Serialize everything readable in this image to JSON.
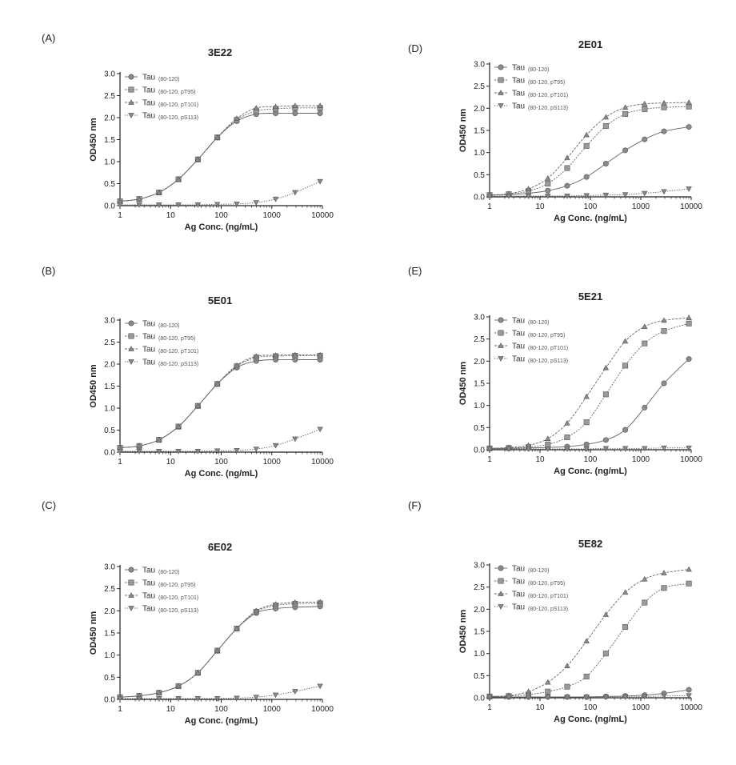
{
  "panels": [
    {
      "letter": "(A)",
      "chart_data": {
        "type": "line",
        "title": "3E22",
        "xlabel": "Ag Conc. (ng/mL)",
        "ylabel": "OD450 nm",
        "xscale": "log",
        "xlim": [
          1,
          10000
        ],
        "ylim": [
          0,
          3.0
        ],
        "xticks": [
          "1",
          "10",
          "100",
          "1000",
          "10000"
        ],
        "yticks": [
          "0.0",
          "0.5",
          "1.0",
          "1.5",
          "2.0",
          "2.5",
          "3.0"
        ],
        "grid": false,
        "legend": "top-left",
        "x": [
          1,
          2.4,
          5.9,
          14.3,
          34.6,
          83.8,
          203,
          492,
          1191,
          2886,
          9000
        ],
        "series": [
          {
            "name": "Tau",
            "sub": "(80-120)",
            "marker": "circle",
            "values": [
              0.1,
              0.15,
              0.3,
              0.6,
              1.05,
              1.55,
              1.92,
              2.08,
              2.1,
              2.1,
              2.1
            ]
          },
          {
            "name": "Tau",
            "sub": "(80-120, pT95)",
            "marker": "square",
            "values": [
              0.1,
              0.15,
              0.3,
              0.6,
              1.05,
              1.55,
              1.95,
              2.15,
              2.2,
              2.22,
              2.22
            ]
          },
          {
            "name": "Tau",
            "sub": "(80-120, pT101)",
            "marker": "triangle",
            "values": [
              0.1,
              0.15,
              0.3,
              0.6,
              1.05,
              1.55,
              1.98,
              2.22,
              2.25,
              2.27,
              2.27
            ]
          },
          {
            "name": "Tau",
            "sub": "(80-120, pS113)",
            "marker": "triangle-down",
            "values": [
              0.02,
              0.02,
              0.02,
              0.02,
              0.02,
              0.03,
              0.04,
              0.07,
              0.15,
              0.3,
              0.55
            ]
          }
        ]
      }
    },
    {
      "letter": "(B)",
      "chart_data": {
        "type": "line",
        "title": "5E01",
        "xlabel": "Ag Conc. (ng/mL)",
        "ylabel": "OD450 nm",
        "xscale": "log",
        "xlim": [
          1,
          10000
        ],
        "ylim": [
          0,
          3.0
        ],
        "xticks": [
          "1",
          "10",
          "100",
          "1000",
          "10000"
        ],
        "yticks": [
          "0.0",
          "0.5",
          "1.0",
          "1.5",
          "2.0",
          "2.5",
          "3.0"
        ],
        "grid": false,
        "legend": "top-left",
        "x": [
          1,
          2.4,
          5.9,
          14.3,
          34.6,
          83.8,
          203,
          492,
          1191,
          2886,
          9000
        ],
        "series": [
          {
            "name": "Tau",
            "sub": "(80-120)",
            "marker": "circle",
            "values": [
              0.1,
              0.14,
              0.28,
              0.58,
              1.05,
              1.55,
              1.92,
              2.07,
              2.1,
              2.1,
              2.1
            ]
          },
          {
            "name": "Tau",
            "sub": "(80-120, pT95)",
            "marker": "square",
            "values": [
              0.1,
              0.14,
              0.28,
              0.58,
              1.05,
              1.55,
              1.95,
              2.15,
              2.18,
              2.19,
              2.19
            ]
          },
          {
            "name": "Tau",
            "sub": "(80-120, pT101)",
            "marker": "triangle",
            "values": [
              0.1,
              0.14,
              0.28,
              0.58,
              1.05,
              1.55,
              1.97,
              2.18,
              2.2,
              2.21,
              2.21
            ]
          },
          {
            "name": "Tau",
            "sub": "(80-120, pS113)",
            "marker": "triangle-down",
            "values": [
              0.02,
              0.02,
              0.02,
              0.02,
              0.02,
              0.03,
              0.04,
              0.07,
              0.15,
              0.3,
              0.52
            ]
          }
        ]
      }
    },
    {
      "letter": "(C)",
      "chart_data": {
        "type": "line",
        "title": "6E02",
        "xlabel": "Ag Conc. (ng/mL)",
        "ylabel": "OD450 nm",
        "xscale": "log",
        "xlim": [
          1,
          10000
        ],
        "ylim": [
          0,
          3.0
        ],
        "xticks": [
          "1",
          "10",
          "100",
          "1000",
          "10000"
        ],
        "yticks": [
          "0.0",
          "0.5",
          "1.0",
          "1.5",
          "2.0",
          "2.5",
          "3.0"
        ],
        "grid": false,
        "legend": "top-left",
        "x": [
          1,
          2.4,
          5.9,
          14.3,
          34.6,
          83.8,
          203,
          492,
          1191,
          2886,
          9000
        ],
        "series": [
          {
            "name": "Tau",
            "sub": "(80-120)",
            "marker": "circle",
            "values": [
              0.05,
              0.08,
              0.15,
              0.3,
              0.6,
              1.1,
              1.6,
              1.95,
              2.05,
              2.08,
              2.1
            ]
          },
          {
            "name": "Tau",
            "sub": "(80-120, pT95)",
            "marker": "square",
            "values": [
              0.05,
              0.08,
              0.15,
              0.3,
              0.6,
              1.1,
              1.6,
              1.98,
              2.12,
              2.16,
              2.17
            ]
          },
          {
            "name": "Tau",
            "sub": "(80-120, pT101)",
            "marker": "triangle",
            "values": [
              0.05,
              0.08,
              0.15,
              0.3,
              0.6,
              1.1,
              1.6,
              2.0,
              2.15,
              2.19,
              2.2
            ]
          },
          {
            "name": "Tau",
            "sub": "(80-120, pS113)",
            "marker": "triangle-down",
            "values": [
              0.02,
              0.02,
              0.02,
              0.02,
              0.02,
              0.02,
              0.03,
              0.05,
              0.1,
              0.18,
              0.3
            ]
          }
        ]
      }
    },
    {
      "letter": "(D)",
      "chart_data": {
        "type": "line",
        "title": "2E01",
        "xlabel": "Ag Conc. (ng/mL)",
        "ylabel": "OD450 nm",
        "xscale": "log",
        "xlim": [
          1,
          10000
        ],
        "ylim": [
          0,
          3.0
        ],
        "xticks": [
          "1",
          "10",
          "100",
          "1000",
          "10000"
        ],
        "yticks": [
          "0.0",
          "0.5",
          "1.0",
          "1.5",
          "2.0",
          "2.5",
          "3.0"
        ],
        "grid": false,
        "legend": "top-left",
        "x": [
          1,
          2.4,
          5.9,
          14.3,
          34.6,
          83.8,
          203,
          492,
          1191,
          2886,
          9000
        ],
        "series": [
          {
            "name": "Tau",
            "sub": "(80-120)",
            "marker": "circle",
            "values": [
              0.04,
              0.05,
              0.08,
              0.14,
              0.25,
              0.45,
              0.75,
              1.05,
              1.3,
              1.48,
              1.58
            ]
          },
          {
            "name": "Tau",
            "sub": "(80-120, pT95)",
            "marker": "square",
            "values": [
              0.04,
              0.06,
              0.13,
              0.3,
              0.65,
              1.15,
              1.6,
              1.87,
              1.98,
              2.02,
              2.04
            ]
          },
          {
            "name": "Tau",
            "sub": "(80-120, pT101)",
            "marker": "triangle",
            "values": [
              0.04,
              0.07,
              0.18,
              0.42,
              0.88,
              1.4,
              1.8,
              2.02,
              2.1,
              2.12,
              2.13
            ]
          },
          {
            "name": "Tau",
            "sub": "(80-120, pS113)",
            "marker": "triangle-down",
            "values": [
              0.02,
              0.02,
              0.02,
              0.02,
              0.02,
              0.03,
              0.04,
              0.05,
              0.08,
              0.12,
              0.18
            ]
          }
        ]
      }
    },
    {
      "letter": "(E)",
      "chart_data": {
        "type": "line",
        "title": "5E21",
        "xlabel": "Ag Conc. (ng/mL)",
        "ylabel": "OD450 nm",
        "xscale": "log",
        "xlim": [
          1,
          10000
        ],
        "ylim": [
          0,
          3.0
        ],
        "xticks": [
          "1",
          "10",
          "100",
          "1000",
          "10000"
        ],
        "yticks": [
          "0.0",
          "0.5",
          "1.0",
          "1.5",
          "2.0",
          "2.5",
          "3.0"
        ],
        "grid": false,
        "legend": "top-left",
        "x": [
          1,
          2.4,
          5.9,
          14.3,
          34.6,
          83.8,
          203,
          492,
          1191,
          2886,
          9000
        ],
        "series": [
          {
            "name": "Tau",
            "sub": "(80-120)",
            "marker": "circle",
            "values": [
              0.03,
              0.03,
              0.04,
              0.05,
              0.07,
              0.12,
              0.22,
              0.45,
              0.95,
              1.5,
              2.05
            ]
          },
          {
            "name": "Tau",
            "sub": "(80-120, pT95)",
            "marker": "square",
            "values": [
              0.03,
              0.04,
              0.06,
              0.12,
              0.28,
              0.62,
              1.25,
              1.9,
              2.4,
              2.68,
              2.85
            ]
          },
          {
            "name": "Tau",
            "sub": "(80-120, pT101)",
            "marker": "triangle",
            "values": [
              0.03,
              0.05,
              0.1,
              0.25,
              0.6,
              1.2,
              1.85,
              2.45,
              2.78,
              2.92,
              2.98
            ]
          },
          {
            "name": "Tau",
            "sub": "(80-120, pS113)",
            "marker": "triangle-down",
            "values": [
              0.02,
              0.02,
              0.02,
              0.02,
              0.02,
              0.02,
              0.03,
              0.03,
              0.03,
              0.04,
              0.04
            ]
          }
        ]
      }
    },
    {
      "letter": "(F)",
      "chart_data": {
        "type": "line",
        "title": "5E82",
        "xlabel": "Ag Conc. (ng/mL)",
        "ylabel": "OD450 nm",
        "xscale": "log",
        "xlim": [
          1,
          10000
        ],
        "ylim": [
          0,
          3.0
        ],
        "xticks": [
          "1",
          "10",
          "100",
          "1000",
          "10000"
        ],
        "yticks": [
          "0.0",
          "0.5",
          "1.0",
          "1.5",
          "2.0",
          "2.5",
          "3.0"
        ],
        "grid": false,
        "legend": "top-left",
        "x": [
          1,
          2.4,
          5.9,
          14.3,
          34.6,
          83.8,
          203,
          492,
          1191,
          2886,
          9000
        ],
        "series": [
          {
            "name": "Tau",
            "sub": "(80-120)",
            "marker": "circle",
            "values": [
              0.02,
              0.02,
              0.02,
              0.02,
              0.02,
              0.02,
              0.03,
              0.04,
              0.06,
              0.1,
              0.18
            ]
          },
          {
            "name": "Tau",
            "sub": "(80-120, pT95)",
            "marker": "square",
            "values": [
              0.03,
              0.04,
              0.07,
              0.14,
              0.25,
              0.48,
              1.0,
              1.6,
              2.15,
              2.48,
              2.58
            ]
          },
          {
            "name": "Tau",
            "sub": "(80-120, pT101)",
            "marker": "triangle",
            "values": [
              0.03,
              0.05,
              0.14,
              0.35,
              0.72,
              1.28,
              1.88,
              2.38,
              2.68,
              2.82,
              2.9
            ]
          },
          {
            "name": "Tau",
            "sub": "(80-120, pS113)",
            "marker": "triangle-down",
            "values": [
              0.02,
              0.02,
              0.02,
              0.02,
              0.02,
              0.02,
              0.02,
              0.03,
              0.03,
              0.04,
              0.05
            ]
          }
        ]
      }
    }
  ]
}
